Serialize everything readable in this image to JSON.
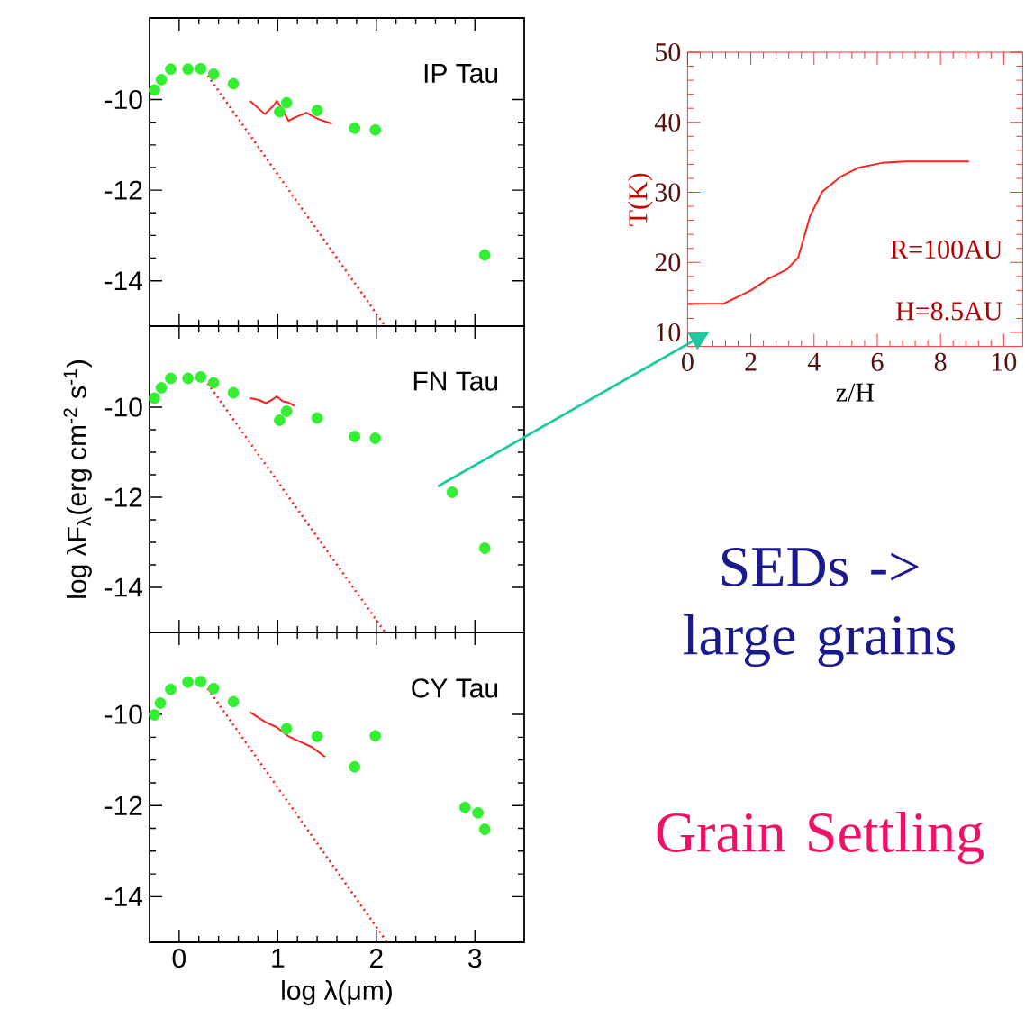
{
  "chart_data": [
    {
      "type": "scatter",
      "annotations": [
        "IP Tau"
      ],
      "xlim": [
        -0.3,
        3.5
      ],
      "ylim": [
        -15,
        -8.2
      ],
      "xticks": [
        0,
        1,
        2,
        3
      ],
      "yticks": [
        -10,
        -12,
        -14
      ],
      "tick_labels": "y",
      "series": [
        {
          "type": "scatter",
          "color": "#33ee33",
          "x": [
            -0.25,
            -0.18,
            -0.085,
            0.09,
            0.22,
            0.35,
            0.55,
            1.02,
            1.09,
            1.4,
            1.78,
            1.99,
            3.1
          ],
          "values": [
            -9.79,
            -9.56,
            -9.33,
            -9.33,
            -9.32,
            -9.44,
            -9.65,
            -10.27,
            -10.07,
            -10.24,
            -10.63,
            -10.67,
            -13.43
          ]
        },
        {
          "type": "line",
          "color": "#ff2020",
          "x": [
            0.72,
            0.87,
            0.96,
            0.99,
            1.04,
            1.11,
            1.17,
            1.29,
            1.41,
            1.55
          ],
          "values": [
            -10.03,
            -10.32,
            -10.13,
            -10.03,
            -10.19,
            -10.47,
            -10.4,
            -10.29,
            -10.43,
            -10.53
          ]
        },
        {
          "type": "line",
          "color": "#ff2020",
          "line_style": "dotted",
          "x": [
            0.29,
            2.09
          ],
          "values": [
            -9.47,
            -15.0
          ]
        }
      ]
    },
    {
      "type": "scatter",
      "annotations": [
        "FN Tau"
      ],
      "ylabel": "log λF$_{λ}$(erg cm$^{-2}$ s$^{-1}$)",
      "xlim": [
        -0.3,
        3.5
      ],
      "ylim": [
        -15,
        -8.2
      ],
      "xticks": [
        0,
        1,
        2,
        3
      ],
      "yticks": [
        -10,
        -12,
        -14
      ],
      "tick_labels": "y",
      "series": [
        {
          "type": "scatter",
          "color": "#33ee33",
          "x": [
            -0.25,
            -0.18,
            -0.085,
            0.09,
            0.22,
            0.35,
            0.55,
            1.02,
            1.09,
            1.4,
            1.78,
            1.99,
            2.77,
            3.1
          ],
          "values": [
            -9.8,
            -9.57,
            -9.36,
            -9.36,
            -9.33,
            -9.46,
            -9.68,
            -10.29,
            -10.09,
            -10.24,
            -10.65,
            -10.69,
            -11.89,
            -13.13
          ]
        },
        {
          "type": "line",
          "color": "#ff2020",
          "x": [
            0.72,
            0.81,
            0.88,
            0.94,
            0.99,
            1.05,
            1.1,
            1.17
          ],
          "values": [
            -9.8,
            -9.84,
            -9.91,
            -9.84,
            -9.76,
            -9.87,
            -9.89,
            -9.97
          ]
        },
        {
          "type": "line",
          "color": "#ff2020",
          "line_style": "dotted",
          "x": [
            0.29,
            2.09
          ],
          "values": [
            -9.47,
            -15.0
          ]
        }
      ]
    },
    {
      "type": "scatter",
      "annotations": [
        "CY Tau"
      ],
      "xlabel": "log λ(μm)",
      "xlim": [
        -0.3,
        3.5
      ],
      "ylim": [
        -15,
        -8.2
      ],
      "xticks": [
        0,
        1,
        2,
        3
      ],
      "yticks": [
        -10,
        -12,
        -14
      ],
      "series": [
        {
          "type": "scatter",
          "color": "#33ee33",
          "x": [
            -0.25,
            -0.19,
            -0.085,
            0.09,
            0.22,
            0.35,
            0.55,
            1.09,
            1.4,
            1.78,
            1.99,
            2.9,
            3.03,
            3.1
          ],
          "values": [
            -10.01,
            -9.75,
            -9.45,
            -9.29,
            -9.28,
            -9.43,
            -9.72,
            -10.31,
            -10.48,
            -11.15,
            -10.47,
            -12.04,
            -12.16,
            -12.52
          ]
        },
        {
          "type": "line",
          "color": "#ff2020",
          "x": [
            0.72,
            0.87,
            0.99,
            1.11,
            1.23,
            1.35,
            1.48
          ],
          "values": [
            -9.95,
            -10.16,
            -10.28,
            -10.48,
            -10.6,
            -10.72,
            -10.93
          ]
        },
        {
          "type": "line",
          "color": "#ff2020",
          "line_style": "dotted",
          "x": [
            0.29,
            2.11
          ],
          "values": [
            -9.43,
            -15.0
          ]
        }
      ]
    },
    {
      "type": "line",
      "xlabel": "z/H",
      "ylabel": "T(K)",
      "annotations": [
        "R=100AU",
        "H=8.5AU"
      ],
      "xlim": [
        0,
        10.6
      ],
      "ylim": [
        8,
        50
      ],
      "xticks": [
        0,
        2,
        4,
        6,
        8,
        10
      ],
      "yticks": [
        10,
        20,
        30,
        40,
        50
      ],
      "series": [
        {
          "type": "line",
          "color": "#ff2020",
          "x": [
            0,
            1.14,
            2.0,
            2.57,
            3.14,
            3.5,
            3.88,
            4.26,
            4.83,
            5.4,
            6.15,
            6.9,
            8.9
          ],
          "values": [
            14.1,
            14.1,
            16.0,
            17.7,
            19.0,
            20.7,
            26.7,
            30.1,
            32.2,
            33.5,
            34.2,
            34.4,
            34.4
          ]
        }
      ]
    },
    {
      "type": "other",
      "annotations": [
        "SEDs -> large grains",
        "Grain Settling"
      ]
    }
  ]
}
